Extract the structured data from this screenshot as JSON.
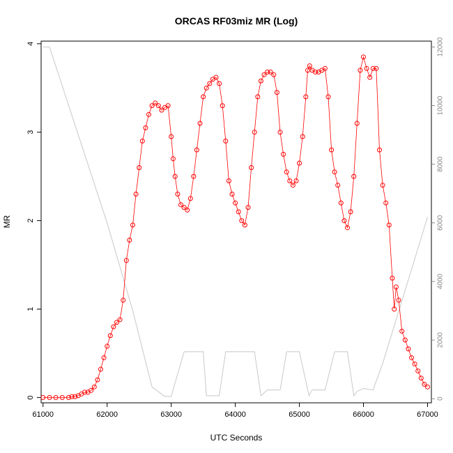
{
  "chart_data": {
    "type": "scatter",
    "title": "ORCAS RF03miz MR (Log)",
    "xlabel": "UTC Seconds",
    "ylabel": "MR",
    "xlim": [
      60970,
      67060
    ],
    "ylim": [
      -0.06,
      4.03
    ],
    "x_ticks": [
      61000,
      62000,
      63000,
      64000,
      65000,
      66000,
      67000
    ],
    "y_ticks": [
      0,
      1,
      2,
      3,
      4
    ],
    "y2lim": [
      -140,
      12200
    ],
    "y2_ticks": [
      0,
      2000,
      4000,
      6000,
      8000,
      10000,
      12000
    ],
    "grid": false,
    "legend": "none",
    "colors": {
      "mr": "#ff0000",
      "altitude": "#c8c8c8"
    },
    "series": [
      {
        "role": "mr",
        "axis": "left",
        "marker": "open-circle",
        "x": [
          61000,
          61100,
          61200,
          61300,
          61400,
          61450,
          61500,
          61550,
          61600,
          61650,
          61700,
          61750,
          61800,
          61850,
          61900,
          61950,
          62000,
          62050,
          62100,
          62150,
          62200,
          62250,
          62300,
          62350,
          62400,
          62450,
          62500,
          62550,
          62600,
          62650,
          62700,
          62750,
          62800,
          62850,
          62900,
          62950,
          63000,
          63030,
          63060,
          63100,
          63150,
          63200,
          63250,
          63300,
          63350,
          63400,
          63450,
          63500,
          63550,
          63600,
          63650,
          63700,
          63750,
          63800,
          63850,
          63900,
          63950,
          64000,
          64050,
          64100,
          64150,
          64200,
          64250,
          64300,
          64350,
          64400,
          64450,
          64500,
          64550,
          64600,
          64650,
          64700,
          64750,
          64800,
          64850,
          64900,
          64950,
          65000,
          65050,
          65100,
          65130,
          65160,
          65200,
          65250,
          65300,
          65350,
          65400,
          65450,
          65500,
          65550,
          65600,
          65650,
          65700,
          65750,
          65800,
          65850,
          65900,
          65950,
          66000,
          66050,
          66100,
          66150,
          66200,
          66250,
          66300,
          66350,
          66400,
          66450,
          66480,
          66510,
          66550,
          66600,
          66650,
          66700,
          66750,
          66800,
          66850,
          66900,
          66950,
          67000
        ],
        "y": [
          0.0,
          0.0,
          0.0,
          0.0,
          0.0,
          0.01,
          0.01,
          0.02,
          0.04,
          0.06,
          0.06,
          0.08,
          0.12,
          0.2,
          0.32,
          0.45,
          0.58,
          0.7,
          0.8,
          0.85,
          0.88,
          1.1,
          1.55,
          1.78,
          1.95,
          2.3,
          2.6,
          2.9,
          3.05,
          3.2,
          3.3,
          3.33,
          3.3,
          3.25,
          3.28,
          3.3,
          2.95,
          2.7,
          2.5,
          2.3,
          2.18,
          2.15,
          2.12,
          2.25,
          2.5,
          2.8,
          3.1,
          3.4,
          3.5,
          3.55,
          3.6,
          3.62,
          3.55,
          3.3,
          2.9,
          2.45,
          2.3,
          2.2,
          2.1,
          2.0,
          1.95,
          2.15,
          2.6,
          3.0,
          3.4,
          3.58,
          3.65,
          3.68,
          3.68,
          3.65,
          3.45,
          3.0,
          2.75,
          2.55,
          2.45,
          2.4,
          2.45,
          2.65,
          2.95,
          3.4,
          3.7,
          3.75,
          3.7,
          3.68,
          3.68,
          3.7,
          3.72,
          3.4,
          2.8,
          2.55,
          2.4,
          2.2,
          2.0,
          1.92,
          2.1,
          2.5,
          3.1,
          3.7,
          3.85,
          3.72,
          3.62,
          3.72,
          3.72,
          2.8,
          2.4,
          2.2,
          1.95,
          1.35,
          1.0,
          1.25,
          1.1,
          0.75,
          0.65,
          0.55,
          0.45,
          0.38,
          0.3,
          0.22,
          0.15,
          0.12
        ]
      },
      {
        "role": "altitude",
        "axis": "right",
        "marker": "line",
        "x": [
          61000,
          61100,
          62000,
          62400,
          62700,
          62900,
          63000,
          63200,
          63500,
          63550,
          63750,
          63850,
          64000,
          64300,
          64400,
          64500,
          64700,
          64800,
          65000,
          65150,
          65200,
          65400,
          65550,
          65750,
          65850,
          65900,
          66000,
          66150,
          66300,
          67000
        ],
        "y": [
          12000,
          12000,
          6000,
          3000,
          400,
          80,
          80,
          1600,
          1600,
          100,
          100,
          1600,
          1600,
          1600,
          100,
          300,
          300,
          1600,
          1600,
          100,
          300,
          300,
          1600,
          1600,
          100,
          250,
          350,
          300,
          1200,
          6200
        ]
      }
    ]
  }
}
